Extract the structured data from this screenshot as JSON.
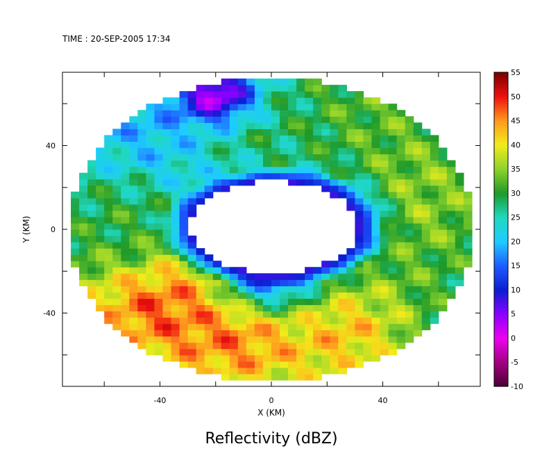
{
  "chart_data": {
    "type": "heatmap",
    "time_label": "TIME : 20-SEP-2005 17:34",
    "title": "Reflectivity (dBZ)",
    "xlabel": "X (KM)",
    "ylabel": "Y (KM)",
    "xlim": [
      -75,
      75
    ],
    "ylim": [
      -75,
      75
    ],
    "x_ticks": [
      -40,
      0,
      40
    ],
    "y_ticks": [
      -40,
      0,
      40
    ],
    "minor_ticks": [
      -60,
      -20,
      20,
      60
    ],
    "radar_range_km": 73,
    "colorbar": {
      "ticks": [
        55,
        50,
        45,
        40,
        35,
        30,
        25,
        20,
        15,
        10,
        5,
        0,
        -5,
        -10
      ],
      "range": [
        -10,
        55
      ],
      "colors": {
        "-10": "#4a0035",
        "-5": "#a10080",
        "0": "#ee00ee",
        "5": "#8a00ff",
        "10": "#0a1fd0",
        "15": "#1e5cff",
        "20": "#1ecbff",
        "25": "#20d8c0",
        "30": "#1e9a2a",
        "35": "#8cd22c",
        "40": "#f2ec1a",
        "45": "#ff9a1e",
        "50": "#f01010",
        "55": "#7a0000"
      }
    },
    "field": {
      "background_dbz": 26,
      "eye": {
        "center": [
          1,
          1
        ],
        "radius_km": [
          30,
          22
        ],
        "min_dbz": 8
      },
      "features": [
        {
          "name": "southwest band",
          "center": [
            -38,
            -32
          ],
          "radius": 26,
          "dbz": 50
        },
        {
          "name": "south band",
          "center": [
            -10,
            -48
          ],
          "radius": 22,
          "dbz": 47
        },
        {
          "name": "south-east band",
          "center": [
            25,
            -48
          ],
          "radius": 20,
          "dbz": 43
        },
        {
          "name": "east band",
          "center": [
            40,
            15
          ],
          "radius": 30,
          "dbz": 37
        },
        {
          "name": "north-east band",
          "center": [
            30,
            55
          ],
          "radius": 20,
          "dbz": 33
        },
        {
          "name": "north-west region",
          "center": [
            -40,
            40
          ],
          "radius": 28,
          "dbz": 18
        },
        {
          "name": "west region",
          "center": [
            -55,
            5
          ],
          "radius": 18,
          "dbz": 30
        },
        {
          "name": "north rim",
          "center": [
            -5,
            50
          ],
          "radius": 18,
          "dbz": 29
        },
        {
          "name": "eyewall east",
          "center": [
            20,
            5
          ],
          "radius": 14,
          "dbz": 12
        },
        {
          "name": "eyewall south",
          "center": [
            0,
            -20
          ],
          "radius": 12,
          "dbz": 10
        },
        {
          "name": "north spot",
          "center": [
            -20,
            65
          ],
          "radius": 10,
          "dbz": 2
        }
      ]
    }
  }
}
